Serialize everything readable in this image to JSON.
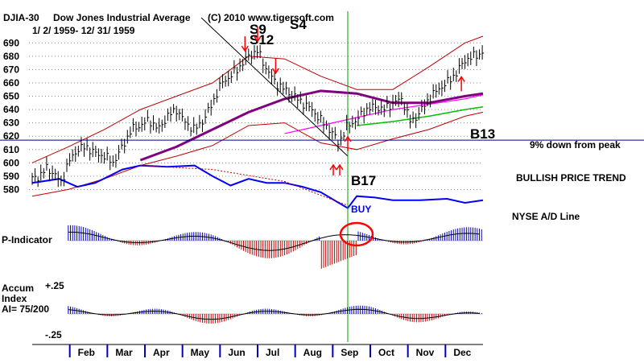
{
  "header": {
    "symbol": "DJIA-30",
    "name": "Dow Jones Industrial Average",
    "dates": "1/ 2/ 1959- 12/ 31/ 1959",
    "copyright": "(C) 2010 www.tigersoft.com"
  },
  "chart_data": {
    "type": "line",
    "title": "DJIA-30  Dow Jones Industrial Average",
    "subtitle": "1/ 2/ 1959- 12/ 31/ 1959",
    "ylim": [
      570,
      695
    ],
    "y_ticks": [
      690,
      680,
      670,
      660,
      650,
      640,
      630,
      620,
      610,
      600,
      590,
      580
    ],
    "months": [
      "Feb",
      "Mar",
      "Apr",
      "May",
      "Jun",
      "Jul",
      "Aug",
      "Sep",
      "Oct",
      "Nov",
      "Dec"
    ],
    "series": [
      {
        "name": "DJIA close (approx.)",
        "x": [
          0,
          4,
          8,
          12,
          16,
          20,
          25,
          30,
          35,
          40,
          45,
          50,
          55,
          60,
          65,
          70,
          75,
          80,
          85,
          90,
          95,
          100,
          105,
          110,
          115,
          120,
          125,
          130,
          135,
          140,
          145,
          150,
          155,
          160,
          165,
          170,
          175,
          180,
          185,
          190,
          195,
          200,
          205,
          210,
          215,
          220,
          225,
          230,
          235,
          240,
          245,
          250
        ],
        "values": [
          588,
          590,
          596,
          592,
          585,
          600,
          610,
          612,
          607,
          605,
          600,
          612,
          625,
          628,
          632,
          625,
          635,
          640,
          630,
          625,
          632,
          645,
          660,
          665,
          672,
          680,
          684,
          670,
          660,
          655,
          650,
          645,
          640,
          632,
          625,
          615,
          628,
          632,
          640,
          642,
          640,
          645,
          648,
          630,
          638,
          648,
          655,
          660,
          667,
          677,
          680,
          683
        ]
      },
      {
        "name": "Moving average (purple)",
        "x": [
          60,
          80,
          100,
          120,
          140,
          160,
          180,
          200,
          220,
          240,
          250
        ],
        "values": [
          602,
          612,
          625,
          638,
          648,
          654,
          652,
          645,
          645,
          650,
          652
        ]
      },
      {
        "name": "Moving average (magenta)",
        "x": [
          140,
          160,
          180,
          200,
          220,
          240,
          250
        ],
        "values": [
          622,
          628,
          634,
          640,
          644,
          648,
          651
        ]
      },
      {
        "name": "Moving average (green)",
        "x": [
          180,
          200,
          220,
          240,
          250
        ],
        "values": [
          628,
          631,
          635,
          640,
          642
        ]
      },
      {
        "name": "Upper band",
        "x": [
          0,
          20,
          40,
          60,
          80,
          100,
          120,
          140,
          160,
          180,
          200,
          220,
          240,
          250
        ],
        "values": [
          600,
          612,
          625,
          640,
          650,
          660,
          680,
          678,
          665,
          655,
          655,
          672,
          690,
          695
        ]
      },
      {
        "name": "Lower band",
        "x": [
          0,
          20,
          40,
          60,
          80,
          100,
          120,
          140,
          160,
          180,
          200,
          220,
          240,
          250
        ],
        "values": [
          575,
          580,
          588,
          598,
          605,
          613,
          628,
          630,
          615,
          610,
          618,
          625,
          635,
          638
        ]
      }
    ],
    "horizontal_line": {
      "value": 617,
      "label": "9% down from peak"
    },
    "vertical_line_day": 175,
    "signals": [
      {
        "label": "S9",
        "day": 118,
        "kind": "sell"
      },
      {
        "label": "S12",
        "day": 125,
        "kind": "sell"
      },
      {
        "label": "S4",
        "day": 135,
        "kind": "sell"
      },
      {
        "label": "B13",
        "day": 238,
        "kind": "buy"
      },
      {
        "label": "B17",
        "day": 175,
        "kind": "buy"
      }
    ],
    "annotations": [
      "BUY",
      "BULLISH PRICE TREND",
      "NYSE A/D Line"
    ],
    "indicators": [
      {
        "name": "P-Indicator"
      },
      {
        "name": "Accum Index",
        "ylabel_top": "+.25",
        "ylabel_bottom": "-.25",
        "note": "AI= 75/200"
      }
    ]
  },
  "labels": {
    "s9": "S9",
    "s12": "S12",
    "s4": "S4",
    "b13": "B13",
    "b17": "B17",
    "buy": "BUY",
    "down_line": "9% down from peak",
    "bullish": "BULLISH PRICE TREND",
    "adline": "NYSE A/D Line",
    "pind": "P-Indicator",
    "accum1": "Accum",
    "accum2": "Index",
    "ai": "AI= 75/200",
    "plus25": "+.25",
    "minus25": "-.25"
  },
  "colors": {
    "price_bars": "#000000",
    "band": "#c00000",
    "ma_purple": "#800080",
    "ma_magenta": "#ff00ff",
    "ma_green": "#00c000",
    "ad_line": "#0000ff",
    "signal_red": "#ff0000",
    "vertical": "#00a000",
    "blue_hist": "#0000c0",
    "red_hist": "#c00000"
  }
}
